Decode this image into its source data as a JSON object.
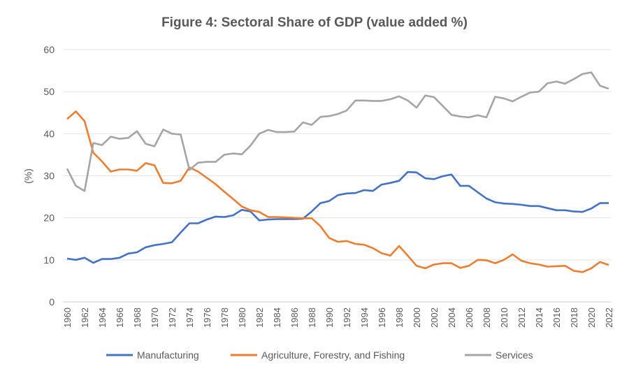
{
  "chart_data": {
    "type": "line",
    "title": "Figure 4: Sectoral Share of GDP (value added %)",
    "xlabel": "",
    "ylabel": "(%)",
    "ylim": [
      0,
      60
    ],
    "yticks": [
      0,
      10,
      20,
      30,
      40,
      50,
      60
    ],
    "xlim": [
      1960,
      2022
    ],
    "xtick_step": 2,
    "grid": "horizontal",
    "legend_position": "bottom",
    "x": [
      1960,
      1961,
      1962,
      1963,
      1964,
      1965,
      1966,
      1967,
      1968,
      1969,
      1970,
      1971,
      1972,
      1973,
      1974,
      1975,
      1976,
      1977,
      1978,
      1979,
      1980,
      1981,
      1982,
      1983,
      1984,
      1985,
      1986,
      1987,
      1988,
      1989,
      1990,
      1991,
      1992,
      1993,
      1994,
      1995,
      1996,
      1997,
      1998,
      1999,
      2000,
      2001,
      2002,
      2003,
      2004,
      2005,
      2006,
      2007,
      2008,
      2009,
      2010,
      2011,
      2012,
      2013,
      2014,
      2015,
      2016,
      2017,
      2018,
      2019,
      2020,
      2021,
      2022
    ],
    "series": [
      {
        "name": "Manufacturing",
        "color": "#4472C4",
        "values": [
          10.3,
          10.0,
          10.5,
          9.3,
          10.2,
          10.2,
          10.5,
          11.5,
          11.8,
          13.0,
          13.5,
          13.8,
          14.2,
          16.5,
          18.7,
          18.7,
          19.6,
          20.3,
          20.2,
          20.6,
          21.9,
          21.5,
          19.4,
          19.6,
          19.7,
          19.7,
          19.7,
          19.8,
          21.5,
          23.5,
          24.0,
          25.4,
          25.8,
          25.9,
          26.6,
          26.4,
          27.9,
          28.3,
          28.8,
          30.9,
          30.8,
          29.4,
          29.2,
          29.9,
          30.3,
          27.6,
          27.6,
          26.1,
          24.6,
          23.7,
          23.4,
          23.3,
          23.1,
          22.8,
          22.8,
          22.3,
          21.8,
          21.8,
          21.5,
          21.4,
          22.2,
          23.5,
          23.5
        ]
      },
      {
        "name": "Agriculture, Forestry, and Fishing",
        "color": "#ED7D31",
        "values": [
          43.5,
          45.3,
          43.0,
          35.5,
          33.4,
          31.0,
          31.5,
          31.5,
          31.2,
          33.0,
          32.5,
          28.3,
          28.2,
          28.8,
          32.0,
          31.0,
          29.5,
          28.0,
          26.2,
          24.5,
          22.7,
          21.8,
          21.4,
          20.2,
          20.2,
          20.1,
          20.0,
          19.9,
          19.9,
          18.0,
          15.2,
          14.3,
          14.5,
          13.8,
          13.6,
          12.8,
          11.6,
          11.0,
          13.3,
          11.0,
          8.6,
          8.0,
          8.9,
          9.2,
          9.2,
          8.1,
          8.6,
          10.0,
          9.9,
          9.2,
          10.0,
          11.3,
          9.8,
          9.2,
          8.9,
          8.4,
          8.5,
          8.6,
          7.4,
          7.1,
          8.0,
          9.5,
          8.8
        ]
      },
      {
        "name": "Services",
        "color": "#A5A5A5",
        "values": [
          31.7,
          27.6,
          26.4,
          37.8,
          37.3,
          39.3,
          38.8,
          39.0,
          40.6,
          37.6,
          37.0,
          41.0,
          40.0,
          39.8,
          31.4,
          33.1,
          33.3,
          33.3,
          35.0,
          35.3,
          35.1,
          37.2,
          40.0,
          40.9,
          40.4,
          40.4,
          40.5,
          42.7,
          42.1,
          44.0,
          44.2,
          44.7,
          45.5,
          47.9,
          47.9,
          47.8,
          47.8,
          48.2,
          48.9,
          47.9,
          46.2,
          49.1,
          48.7,
          46.6,
          44.5,
          44.1,
          43.9,
          44.4,
          43.9,
          48.8,
          48.4,
          47.7,
          48.8,
          49.8,
          50.0,
          52.0,
          52.4,
          51.9,
          53.0,
          54.2,
          54.6,
          51.4,
          50.7
        ]
      }
    ]
  }
}
